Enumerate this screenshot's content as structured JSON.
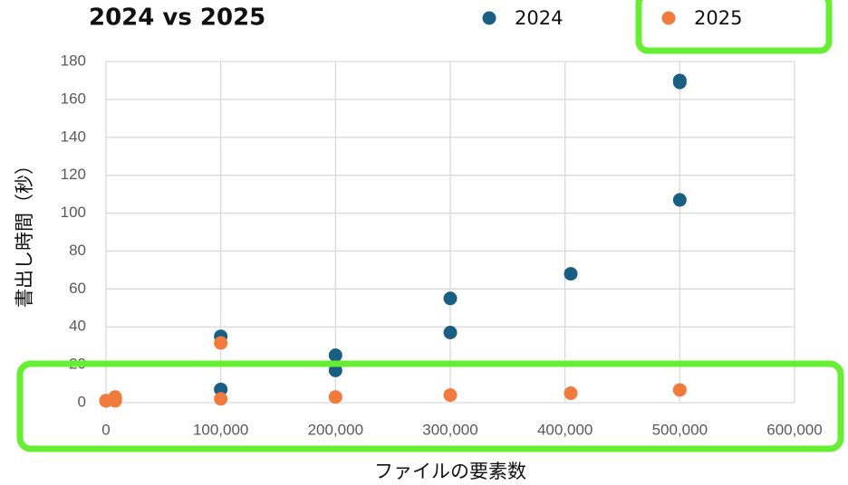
{
  "chart_data": {
    "type": "scatter",
    "title": "2024 vs 2025",
    "x_label": "ファイルの要素数",
    "y_label": "書出し時間（秒）",
    "xlim": [
      0,
      600000
    ],
    "ylim": [
      0,
      180
    ],
    "xticks": [
      0,
      {
        "value": 100000,
        "label": "100,000"
      },
      {
        "value": 200000,
        "label": "200,000"
      },
      {
        "value": 300000,
        "label": "300,000"
      },
      {
        "value": 400000,
        "label": "400,000"
      },
      {
        "value": 500000,
        "label": "500,000"
      },
      {
        "value": 600000,
        "label": "600,000"
      }
    ],
    "yticks": [
      0,
      20,
      40,
      60,
      80,
      100,
      120,
      140,
      160,
      180
    ],
    "grid": true,
    "legend": "top",
    "series": [
      {
        "name": "2024",
        "color": "#1b5e83",
        "x": [
          0,
          8000,
          100000,
          100000,
          200000,
          200000,
          300000,
          300000,
          405000,
          500000,
          500000,
          500000
        ],
        "values": [
          1,
          2,
          35,
          7,
          25,
          17,
          55,
          37,
          68,
          170,
          169,
          107
        ]
      },
      {
        "name": "2025",
        "color": "#f07b3c",
        "x": [
          0,
          8000,
          8000,
          100000,
          100000,
          200000,
          300000,
          405000,
          500000
        ],
        "values": [
          1,
          3,
          1,
          31.5,
          2,
          3,
          4,
          5,
          6.7
        ]
      }
    ]
  }
}
